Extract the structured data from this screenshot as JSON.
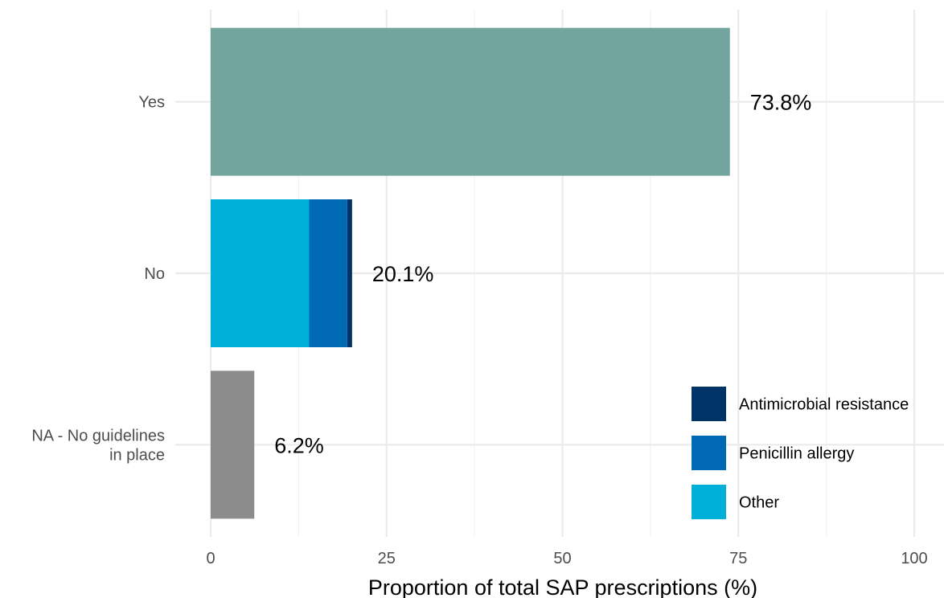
{
  "chart_data": {
    "type": "bar",
    "orientation": "horizontal",
    "stacked": true,
    "title": "",
    "xlabel": "Proportion of total SAP prescriptions (%)",
    "ylabel": "",
    "xlim": [
      0,
      100
    ],
    "x_ticks": [
      "0",
      "25",
      "50",
      "75",
      "100"
    ],
    "grid": true,
    "legend_position": "bottom-right",
    "categories": [
      {
        "name": "Yes",
        "label_lines": [
          "Yes"
        ],
        "total_label": "73.8%"
      },
      {
        "name": "No",
        "label_lines": [
          "No"
        ],
        "total_label": "20.1%"
      },
      {
        "name": "NA - No guidelines in place",
        "label_lines": [
          "NA - No guidelines",
          "in place"
        ],
        "total_label": "6.2%"
      }
    ],
    "segments": [
      {
        "category": "Yes",
        "series": "",
        "value": 73.8,
        "color": "#72a59e"
      },
      {
        "category": "No",
        "series": "Other",
        "value": 14.0,
        "color": "#00b0d8"
      },
      {
        "category": "No",
        "series": "Penicillin allergy",
        "value": 5.4,
        "color": "#0069b4"
      },
      {
        "category": "No",
        "series": "Antimicrobial resistance",
        "value": 0.7,
        "color": "#003366"
      },
      {
        "category": "NA - No guidelines in place",
        "series": "",
        "value": 6.2,
        "color": "#8c8c8c"
      }
    ],
    "legend": [
      {
        "name": "Antimicrobial resistance",
        "color": "#003366"
      },
      {
        "name": "Penicillin allergy",
        "color": "#0069b4"
      },
      {
        "name": "Other",
        "color": "#00b0d8"
      }
    ]
  }
}
